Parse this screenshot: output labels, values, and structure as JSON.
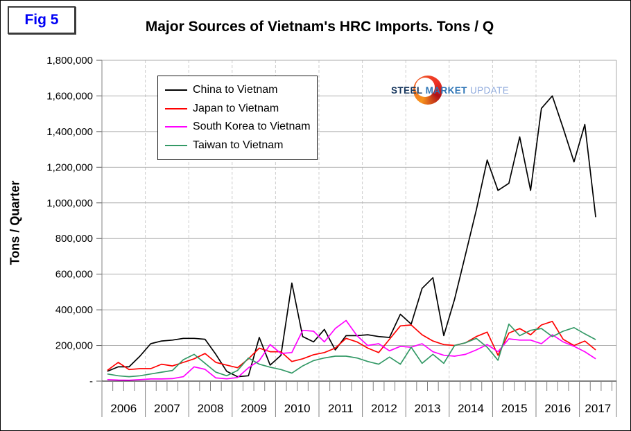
{
  "figure": {
    "tag": "Fig 5",
    "title": "Major Sources of Vietnam's HRC Imports. Tons / Q"
  },
  "logo": {
    "word1": "STEEL",
    "word2": "MARKET",
    "word3": "UPDATE"
  },
  "chart_data": {
    "type": "line",
    "title": "Major Sources of Vietnam's HRC Imports. Tons / Q",
    "xlabel": "",
    "ylabel": "Tons / Quarter",
    "ylim": [
      0,
      1800000
    ],
    "ytick_values": [
      0,
      200000,
      400000,
      600000,
      800000,
      1000000,
      1200000,
      1400000,
      1600000,
      1800000
    ],
    "ytick_labels": [
      "-",
      "200,000",
      "400,000",
      "600,000",
      "800,000",
      "1,000,000",
      "1,200,000",
      "1,400,000",
      "1,600,000",
      "1,800,000"
    ],
    "x_year_labels": [
      "2006",
      "2007",
      "2008",
      "2009",
      "2010",
      "2011",
      "2012",
      "2013",
      "2014",
      "2015",
      "2016",
      "2017"
    ],
    "x_quarters": [
      "2006Q1",
      "2006Q2",
      "2006Q3",
      "2006Q4",
      "2007Q1",
      "2007Q2",
      "2007Q3",
      "2007Q4",
      "2008Q1",
      "2008Q2",
      "2008Q3",
      "2008Q4",
      "2009Q1",
      "2009Q2",
      "2009Q3",
      "2009Q4",
      "2010Q1",
      "2010Q2",
      "2010Q3",
      "2010Q4",
      "2011Q1",
      "2011Q2",
      "2011Q3",
      "2011Q4",
      "2012Q1",
      "2012Q2",
      "2012Q3",
      "2012Q4",
      "2013Q1",
      "2013Q2",
      "2013Q3",
      "2013Q4",
      "2014Q1",
      "2014Q2",
      "2014Q3",
      "2014Q4",
      "2015Q1",
      "2015Q2",
      "2015Q3",
      "2015Q4",
      "2016Q1",
      "2016Q2",
      "2016Q3",
      "2016Q4",
      "2017Q1",
      "2017Q2"
    ],
    "grid": true,
    "legend_position": "top-left-inside",
    "gridline_color": "#ababab",
    "year_divider_color": "#cccccc",
    "axis_color": "#808080",
    "series": [
      {
        "name": "China to Vietnam",
        "color": "#000000",
        "values": [
          55000,
          80000,
          80000,
          140000,
          210000,
          225000,
          230000,
          240000,
          240000,
          235000,
          150000,
          55000,
          25000,
          30000,
          245000,
          90000,
          145000,
          550000,
          250000,
          220000,
          290000,
          175000,
          255000,
          255000,
          260000,
          250000,
          245000,
          375000,
          320000,
          520000,
          580000,
          255000,
          460000,
          710000,
          960000,
          1240000,
          1070000,
          1110000,
          1370000,
          1070000,
          1530000,
          1600000,
          1420000,
          1230000,
          1440000,
          920000
        ]
      },
      {
        "name": "Japan to Vietnam",
        "color": "#ff0000",
        "values": [
          60000,
          105000,
          65000,
          70000,
          70000,
          95000,
          85000,
          105000,
          125000,
          155000,
          105000,
          90000,
          75000,
          125000,
          185000,
          165000,
          165000,
          110000,
          125000,
          148000,
          160000,
          185000,
          240000,
          220000,
          185000,
          160000,
          235000,
          310000,
          315000,
          260000,
          225000,
          205000,
          200000,
          215000,
          250000,
          275000,
          145000,
          270000,
          295000,
          260000,
          315000,
          335000,
          235000,
          200000,
          225000,
          175000
        ]
      },
      {
        "name": "South Korea to Vietnam",
        "color": "#ff00ff",
        "values": [
          8000,
          6000,
          5000,
          8000,
          12000,
          12000,
          14000,
          25000,
          80000,
          66000,
          18000,
          13000,
          20000,
          75000,
          115000,
          205000,
          155000,
          160000,
          285000,
          280000,
          220000,
          295000,
          340000,
          255000,
          200000,
          210000,
          170000,
          195000,
          190000,
          210000,
          165000,
          145000,
          140000,
          150000,
          175000,
          205000,
          165000,
          237000,
          230000,
          230000,
          210000,
          260000,
          220000,
          195000,
          165000,
          125000
        ]
      },
      {
        "name": "Taiwan to Vietnam",
        "color": "#339966",
        "values": [
          40000,
          30000,
          25000,
          30000,
          40000,
          50000,
          60000,
          120000,
          150000,
          100000,
          50000,
          30000,
          60000,
          130000,
          95000,
          78000,
          65000,
          45000,
          85000,
          115000,
          130000,
          140000,
          140000,
          130000,
          110000,
          95000,
          135000,
          95000,
          190000,
          100000,
          150000,
          100000,
          200000,
          215000,
          240000,
          190000,
          117000,
          320000,
          255000,
          285000,
          295000,
          250000,
          280000,
          300000,
          265000,
          233000
        ]
      }
    ]
  }
}
